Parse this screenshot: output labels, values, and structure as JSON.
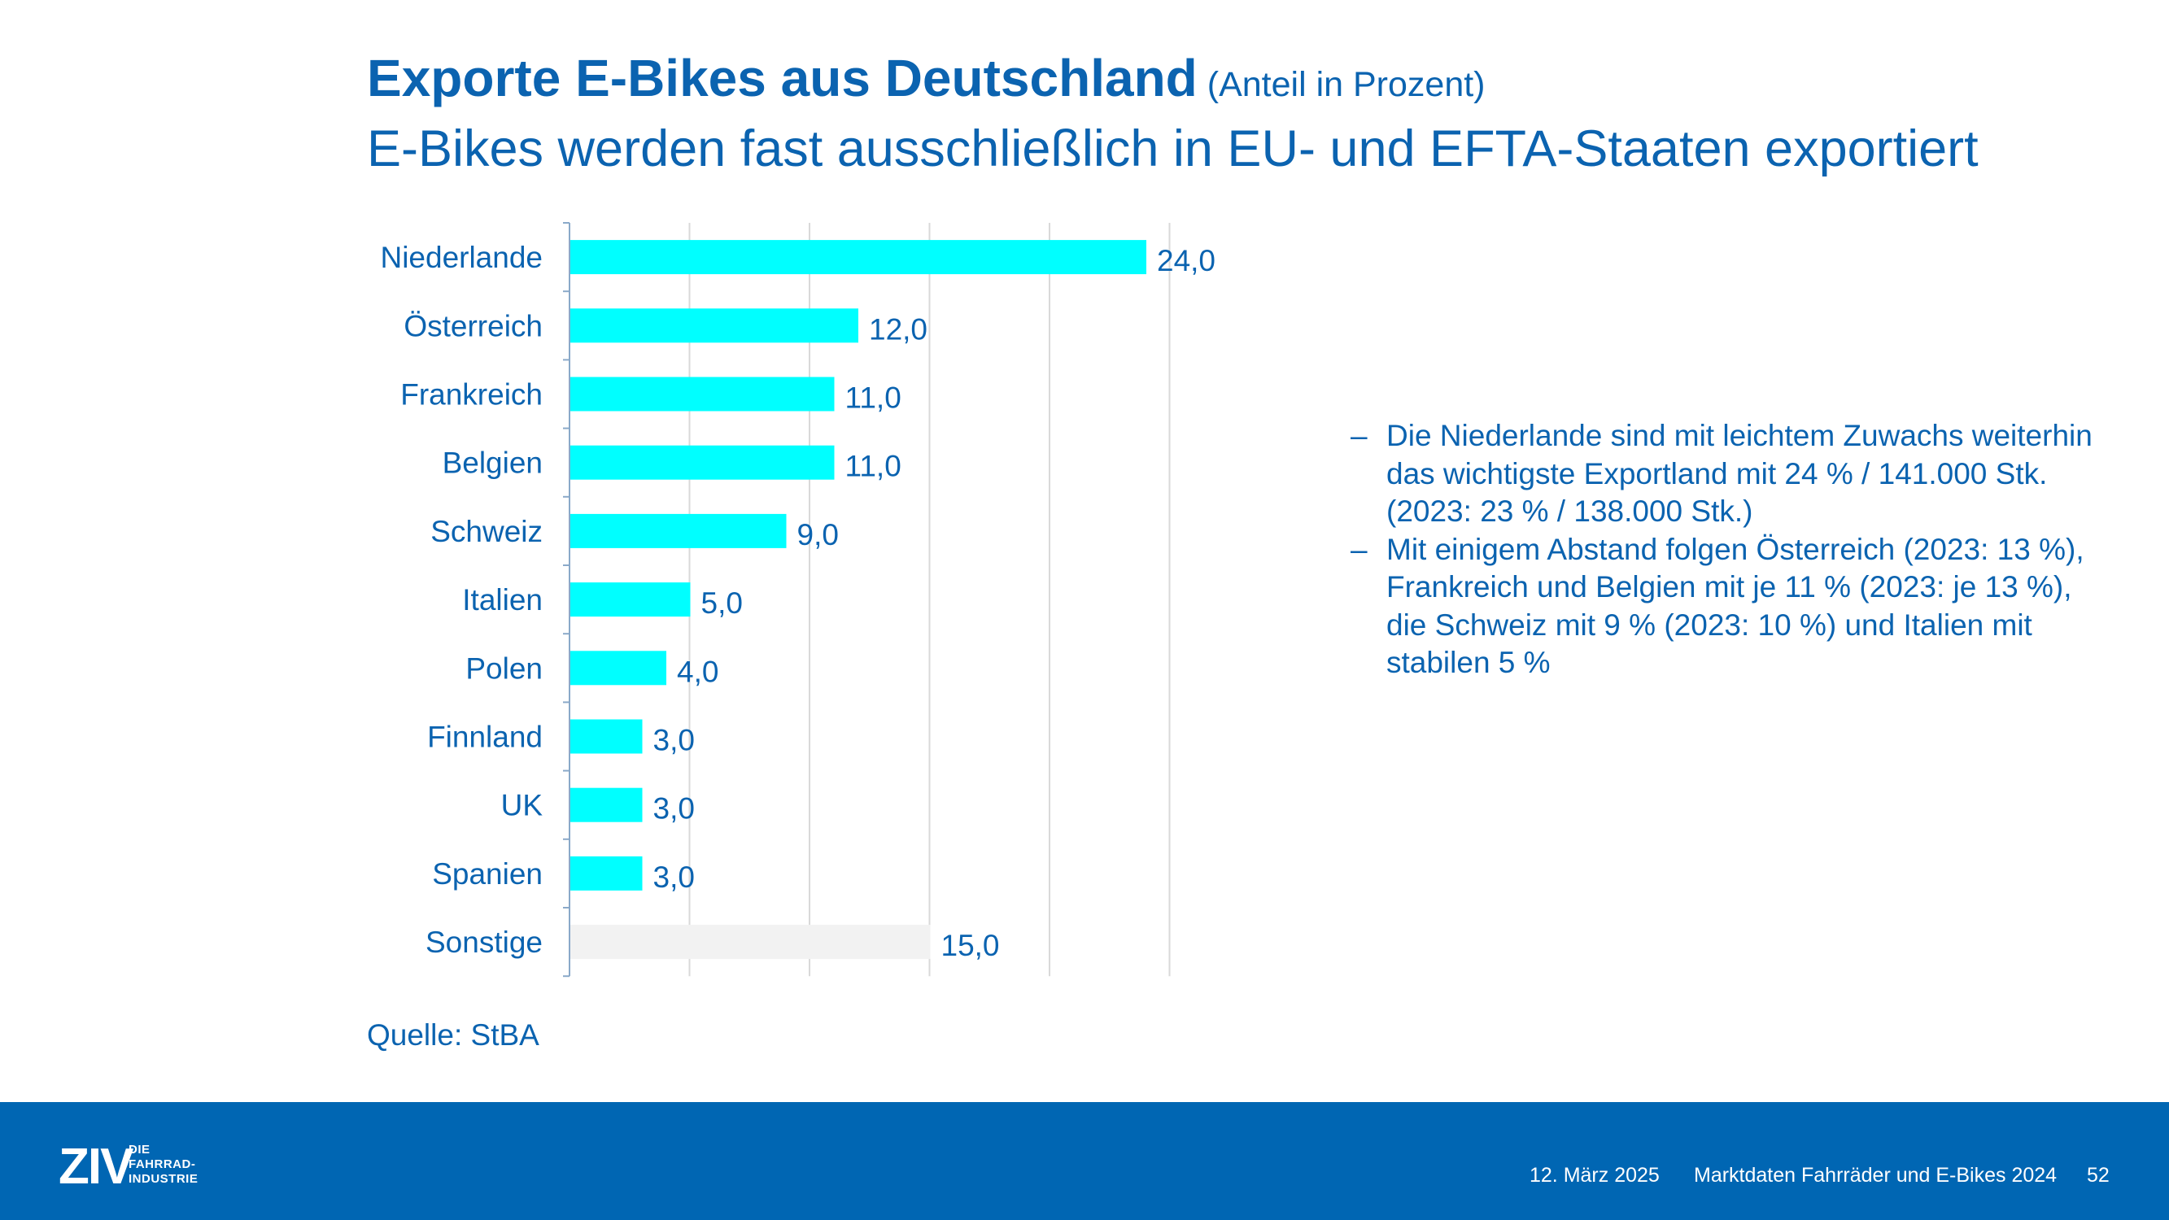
{
  "slide": {
    "title": "Exporte E-Bikes aus Deutschland",
    "title_unit": "(Anteil in Prozent)",
    "subtitle": "E-Bikes werden fast ausschließlich in EU- und EFTA-Staaten exportiert",
    "source": "Quelle: StBA"
  },
  "bullets": [
    {
      "dash": "–",
      "text": "Die Niederlande sind mit leichtem Zuwachs weiterhin das wichtigste Exportland mit 24 % / 141.000 Stk. (2023: 23 % / 138.000 Stk.)"
    },
    {
      "dash": "–",
      "text": "Mit einigem Abstand folgen Österreich (2023: 13 %), Frankreich und Belgien mit je 11 % (2023: je 13 %), die Schweiz mit 9 % (2023: 10 %) und Italien mit stabilen 5 %"
    }
  ],
  "footer": {
    "logo_text": "ZIV",
    "logo_line1": "DIE",
    "logo_line2": "FAHRRAD-",
    "logo_line3": "INDUSTRIE",
    "date": "12. März 2025",
    "report": "Marktdaten Fahrräder und E-Bikes 2024",
    "page": "52"
  },
  "colors": {
    "primary": "#0b63b0",
    "footer": "#0066b3",
    "bar": "#00ffff",
    "bar_other": "#f2f2f2",
    "grid": "#d9d9d9"
  },
  "chart_data": {
    "type": "bar",
    "orientation": "horizontal",
    "categories": [
      "Niederlande",
      "Österreich",
      "Frankreich",
      "Belgien",
      "Schweiz",
      "Italien",
      "Polen",
      "Finnland",
      "UK",
      "Spanien",
      "Sonstige"
    ],
    "values": [
      24.0,
      12.0,
      11.0,
      11.0,
      9.0,
      5.0,
      4.0,
      3.0,
      3.0,
      3.0,
      15.0
    ],
    "value_labels": [
      "24,0",
      "12,0",
      "11,0",
      "11,0",
      "9,0",
      "5,0",
      "4,0",
      "3,0",
      "3,0",
      "3,0",
      "15,0"
    ],
    "xlim": [
      0,
      25
    ],
    "grid": true,
    "title": "Exporte E-Bikes aus Deutschland",
    "xlabel": "",
    "ylabel": ""
  }
}
